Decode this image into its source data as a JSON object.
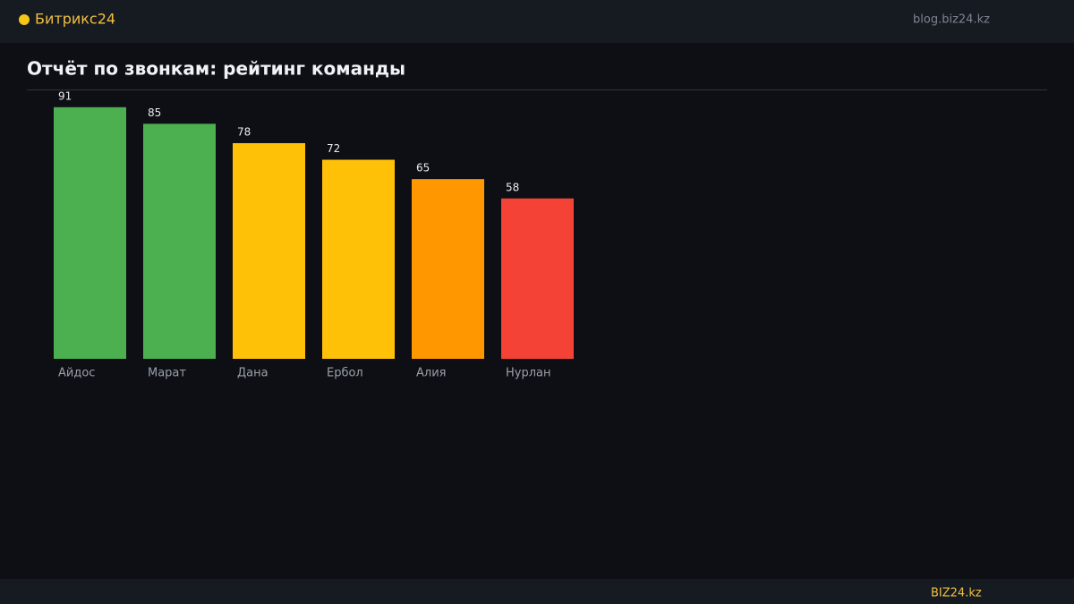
{
  "header": {
    "brand": "Битрикс24",
    "site": "blog.biz24.kz"
  },
  "footer": {
    "brand": "BIZ24.kz"
  },
  "chart_data": {
    "type": "bar",
    "title": "Отчёт по звонкам: рейтинг команды",
    "categories": [
      "Айдос",
      "Марат",
      "Дана",
      "Ербол",
      "Алия",
      "Нурлан"
    ],
    "values": [
      91,
      85,
      78,
      72,
      65,
      58
    ],
    "colors": [
      "#4caf50",
      "#4caf50",
      "#ffc107",
      "#ffc107",
      "#ff9800",
      "#f44336"
    ],
    "ylim": [
      0,
      100
    ]
  }
}
